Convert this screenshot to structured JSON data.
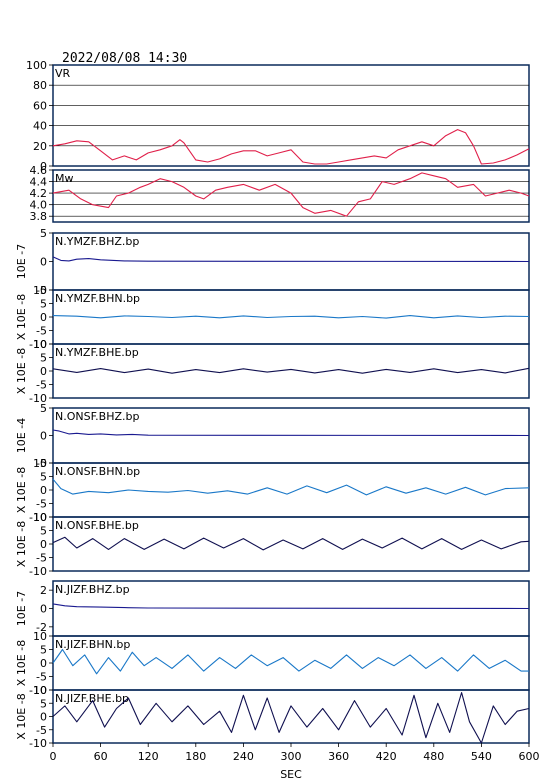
{
  "header": {
    "timestamp": "2022/08/08 14:30"
  },
  "x_axis": {
    "label": "SEC",
    "range": [
      0,
      600
    ],
    "ticks": [
      "0",
      "60",
      "120",
      "180",
      "240",
      "300",
      "360",
      "420",
      "480",
      "540",
      "600"
    ]
  },
  "chart_data": {
    "type": "line",
    "title": "2022/08/08 14:30",
    "xlabel": "SEC",
    "xlim": [
      0,
      600
    ],
    "panels": [
      {
        "label": "VR",
        "ylim": [
          0,
          100
        ],
        "yticks": [
          "0",
          "20",
          "40",
          "60",
          "80",
          "100"
        ],
        "grid": true,
        "color": "#e0204a",
        "x": [
          0,
          15,
          30,
          45,
          60,
          75,
          90,
          105,
          120,
          135,
          150,
          160,
          165,
          180,
          195,
          210,
          225,
          240,
          255,
          270,
          285,
          300,
          315,
          330,
          345,
          360,
          375,
          390,
          405,
          420,
          435,
          450,
          465,
          480,
          495,
          510,
          520,
          530,
          540,
          555,
          570,
          585,
          600
        ],
        "values": [
          20,
          22,
          25,
          24,
          15,
          6,
          10,
          6,
          13,
          16,
          20,
          26,
          23,
          6,
          4,
          7,
          12,
          15,
          15,
          10,
          13,
          16,
          4,
          2,
          2,
          4,
          6,
          8,
          10,
          8,
          16,
          20,
          24,
          20,
          30,
          36,
          33,
          20,
          2,
          3,
          6,
          11,
          17
        ],
        "scale_label": ""
      },
      {
        "label": "Mw",
        "ylim": [
          3.7,
          4.6
        ],
        "yticks": [
          "3.8",
          "4.0",
          "4.2",
          "4.4",
          "4.6"
        ],
        "grid": true,
        "color": "#e0204a",
        "x": [
          0,
          20,
          35,
          50,
          70,
          80,
          95,
          110,
          120,
          135,
          150,
          165,
          180,
          190,
          205,
          220,
          240,
          260,
          280,
          300,
          315,
          330,
          350,
          370,
          385,
          400,
          415,
          430,
          450,
          465,
          480,
          495,
          510,
          530,
          545,
          560,
          575,
          590,
          600
        ],
        "values": [
          4.2,
          4.25,
          4.1,
          4.0,
          3.95,
          4.15,
          4.2,
          4.3,
          4.35,
          4.45,
          4.4,
          4.3,
          4.15,
          4.1,
          4.25,
          4.3,
          4.35,
          4.25,
          4.35,
          4.2,
          3.95,
          3.85,
          3.9,
          3.8,
          4.05,
          4.1,
          4.4,
          4.35,
          4.45,
          4.55,
          4.5,
          4.45,
          4.3,
          4.35,
          4.15,
          4.2,
          4.25,
          4.2,
          4.15
        ],
        "scale_label": ""
      },
      {
        "label": "N.YMZF.BHZ.bp",
        "ylim": [
          -5,
          5
        ],
        "yticks": [
          "-5",
          "0",
          "5"
        ],
        "grid": false,
        "color": "#1a1a90",
        "x": [
          0,
          10,
          20,
          30,
          45,
          60,
          90,
          120,
          600
        ],
        "values": [
          0.8,
          0.2,
          0.1,
          0.4,
          0.5,
          0.3,
          0.1,
          0.05,
          0.0
        ],
        "scale_label": "10E -7"
      },
      {
        "label": "N.YMZF.BHN.bp",
        "ylim": [
          -10,
          10
        ],
        "yticks": [
          "-10",
          "-5",
          "0",
          "5",
          "10"
        ],
        "grid": false,
        "color": "#1a78c8",
        "x": [
          0,
          30,
          60,
          90,
          120,
          150,
          180,
          210,
          240,
          270,
          300,
          330,
          360,
          390,
          420,
          450,
          480,
          510,
          540,
          570,
          600
        ],
        "values": [
          0.5,
          0.3,
          -0.3,
          0.4,
          0.2,
          -0.2,
          0.3,
          -0.3,
          0.4,
          -0.2,
          0.2,
          0.3,
          -0.3,
          0.2,
          -0.4,
          0.5,
          -0.3,
          0.4,
          -0.2,
          0.3,
          0.2
        ],
        "scale_label": "X 10E -8"
      },
      {
        "label": "N.YMZF.BHE.bp",
        "ylim": [
          -10,
          10
        ],
        "yticks": [
          "-10",
          "-5",
          "0",
          "5",
          "10"
        ],
        "grid": false,
        "color": "#101050",
        "x": [
          0,
          30,
          60,
          90,
          120,
          150,
          180,
          210,
          240,
          270,
          300,
          330,
          360,
          390,
          420,
          450,
          480,
          510,
          540,
          570,
          600
        ],
        "values": [
          0.8,
          -0.5,
          0.9,
          -0.6,
          0.7,
          -0.8,
          0.5,
          -0.6,
          0.8,
          -0.4,
          0.6,
          -0.7,
          0.5,
          -0.8,
          0.6,
          -0.5,
          0.8,
          -0.6,
          0.5,
          -0.7,
          1.0
        ],
        "scale_label": "X 10E -8"
      },
      {
        "label": "N.ONSF.BHZ.bp",
        "ylim": [
          -5,
          5
        ],
        "yticks": [
          "-5",
          "0",
          "5"
        ],
        "grid": false,
        "color": "#1a1a90",
        "x": [
          0,
          8,
          20,
          30,
          45,
          60,
          80,
          100,
          120,
          600
        ],
        "values": [
          1.0,
          0.8,
          0.3,
          0.4,
          0.2,
          0.3,
          0.1,
          0.2,
          0.05,
          0.0
        ],
        "scale_label": "10E -4"
      },
      {
        "label": "N.ONSF.BHN.bp",
        "ylim": [
          -10,
          10
        ],
        "yticks": [
          "-10",
          "-5",
          "0",
          "5",
          "10"
        ],
        "grid": false,
        "color": "#1a78c8",
        "x": [
          0,
          10,
          25,
          45,
          70,
          95,
          120,
          145,
          170,
          195,
          220,
          245,
          270,
          295,
          320,
          345,
          370,
          395,
          420,
          445,
          470,
          495,
          520,
          545,
          570,
          600
        ],
        "values": [
          4.0,
          0.5,
          -1.5,
          -0.5,
          -1.0,
          0.0,
          -0.5,
          -0.8,
          -0.2,
          -1.2,
          -0.3,
          -1.5,
          0.8,
          -1.5,
          1.5,
          -1.0,
          1.8,
          -1.8,
          1.2,
          -1.2,
          0.8,
          -1.5,
          1.0,
          -1.8,
          0.5,
          0.8
        ],
        "scale_label": "X 10E -8"
      },
      {
        "label": "N.ONSF.BHE.bp",
        "ylim": [
          -10,
          10
        ],
        "yticks": [
          "-10",
          "-5",
          "0",
          "5",
          "10"
        ],
        "grid": false,
        "color": "#101050",
        "x": [
          0,
          15,
          30,
          50,
          70,
          90,
          115,
          140,
          165,
          190,
          215,
          240,
          265,
          290,
          315,
          340,
          365,
          390,
          415,
          440,
          465,
          490,
          515,
          540,
          565,
          590,
          600
        ],
        "values": [
          0.5,
          2.5,
          -1.5,
          2.0,
          -2.0,
          2.0,
          -2.0,
          1.8,
          -1.8,
          2.2,
          -1.5,
          2.0,
          -2.2,
          1.5,
          -1.8,
          2.0,
          -2.0,
          1.8,
          -1.5,
          2.2,
          -1.8,
          2.0,
          -2.0,
          1.5,
          -1.8,
          0.8,
          1.0
        ],
        "scale_label": "X 10E -8"
      },
      {
        "label": "N.JIZF.BHZ.bp",
        "ylim": [
          -3,
          3
        ],
        "yticks": [
          "-2",
          "0",
          "2"
        ],
        "grid": false,
        "color": "#1a1a90",
        "x": [
          0,
          15,
          30,
          60,
          90,
          120,
          600
        ],
        "values": [
          0.5,
          0.3,
          0.2,
          0.15,
          0.1,
          0.05,
          0.0
        ],
        "scale_label": "10E -7"
      },
      {
        "label": "N.JIZF.BHN.bp",
        "ylim": [
          -10,
          10
        ],
        "yticks": [
          "-10",
          "-5",
          "0",
          "5",
          "10"
        ],
        "grid": false,
        "color": "#1a78c8",
        "x": [
          0,
          12,
          25,
          40,
          55,
          70,
          85,
          100,
          115,
          130,
          150,
          170,
          190,
          210,
          230,
          250,
          270,
          290,
          310,
          330,
          350,
          370,
          390,
          410,
          430,
          450,
          470,
          490,
          510,
          530,
          550,
          570,
          590,
          600
        ],
        "values": [
          0,
          5,
          -1,
          3,
          -4,
          2,
          -3,
          4,
          -1,
          2,
          -2,
          3,
          -3,
          2,
          -2,
          3,
          -1,
          2,
          -3,
          1,
          -2,
          3,
          -2,
          2,
          -1,
          3,
          -2,
          2,
          -3,
          3,
          -2,
          1,
          -3,
          -3
        ],
        "scale_label": "X 10E -8"
      },
      {
        "label": "N.JIZF.BHE.bp",
        "ylim": [
          -10,
          10
        ],
        "yticks": [
          "-10",
          "-5",
          "0",
          "5",
          "10"
        ],
        "grid": false,
        "color": "#101050",
        "x": [
          0,
          15,
          30,
          50,
          65,
          80,
          95,
          110,
          130,
          150,
          170,
          190,
          210,
          225,
          240,
          255,
          270,
          285,
          300,
          320,
          340,
          360,
          380,
          400,
          420,
          440,
          455,
          470,
          485,
          500,
          515,
          525,
          540,
          555,
          570,
          585,
          600
        ],
        "values": [
          0,
          4,
          -2,
          6,
          -4,
          3,
          7,
          -3,
          5,
          -2,
          4,
          -3,
          2,
          -6,
          8,
          -5,
          7,
          -6,
          4,
          -4,
          3,
          -5,
          6,
          -4,
          3,
          -7,
          8,
          -8,
          5,
          -6,
          9,
          -2,
          -10,
          4,
          -3,
          2,
          3
        ],
        "scale_label": "X 10E -8"
      }
    ]
  }
}
